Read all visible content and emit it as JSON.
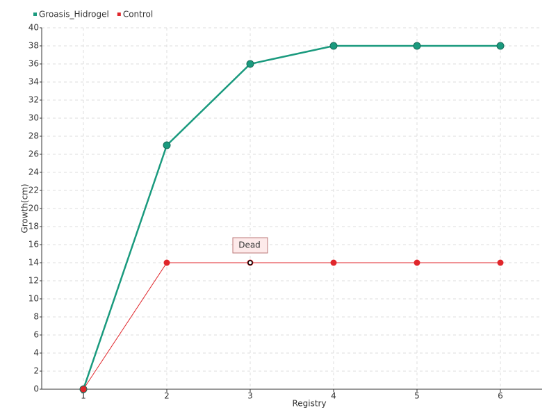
{
  "chart_data": {
    "type": "line",
    "x_label": "Registry",
    "y_label": "Growth(cm)",
    "categories": [
      "1",
      "2",
      "3",
      "4",
      "5",
      "6"
    ],
    "series": [
      {
        "name": "Groasis_Hidrogel",
        "color": "#1a9a7e",
        "values": [
          0,
          27,
          36,
          38,
          38,
          38
        ]
      },
      {
        "name": "Control",
        "color": "#e0262b",
        "values": [
          0,
          14,
          14,
          14,
          14,
          14
        ]
      }
    ],
    "annotations": [
      {
        "text": "Dead",
        "category": "3",
        "series": "Control"
      }
    ],
    "ylim": [
      0,
      40
    ],
    "yticks": [
      0,
      2,
      4,
      6,
      8,
      10,
      12,
      14,
      16,
      18,
      20,
      22,
      24,
      26,
      28,
      30,
      32,
      34,
      36,
      38,
      40
    ],
    "grid": true,
    "legend": "top-left"
  }
}
